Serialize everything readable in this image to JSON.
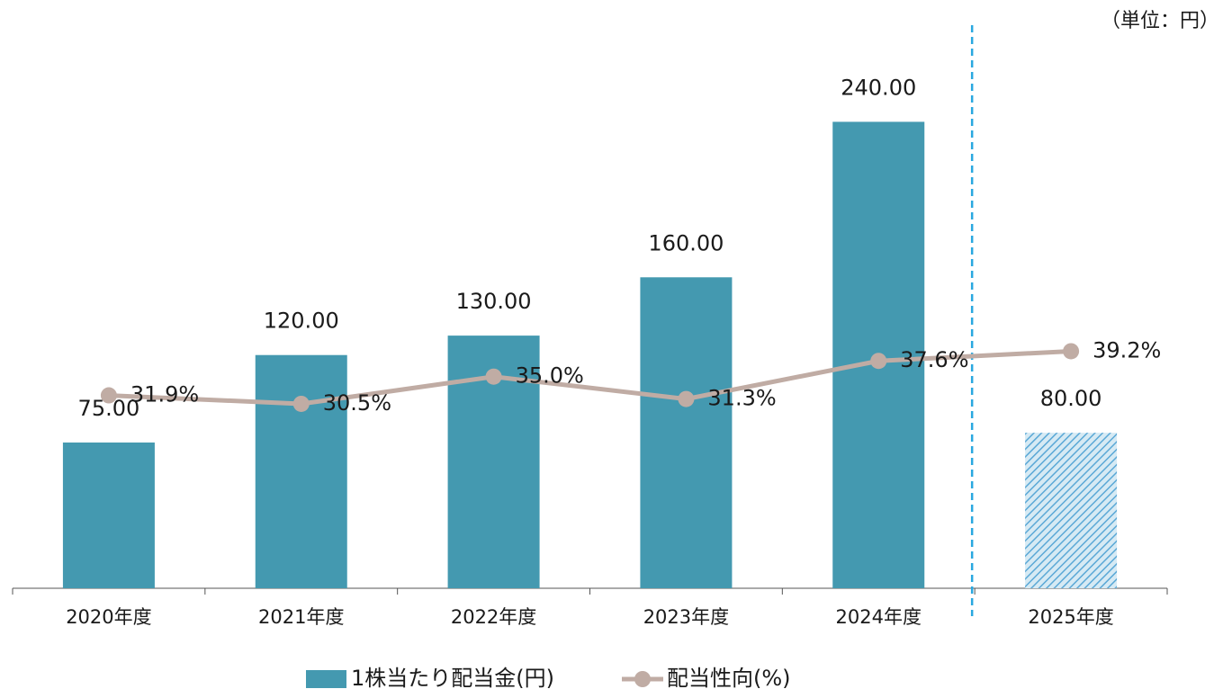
{
  "chart_data": {
    "type": "bar",
    "unit_label": "（単位：円）",
    "categories": [
      "2020年度",
      "2021年度",
      "2022年度",
      "2023年度",
      "2024年度",
      "2025年度"
    ],
    "series": [
      {
        "name": "1株当たり配当金(円)",
        "type": "bar",
        "color": "#4499b0",
        "values": [
          75,
          120,
          130,
          160,
          240,
          80
        ],
        "value_labels": [
          "75.00",
          "120.00",
          "130.00",
          "160.00",
          "240.00",
          "80.00"
        ],
        "hatch": [
          false,
          false,
          false,
          false,
          false,
          true
        ]
      },
      {
        "name": "配当性向(%)",
        "type": "line",
        "color": "#c0aca4",
        "axis": "y2",
        "values": [
          31.9,
          30.5,
          35.0,
          31.3,
          37.6,
          39.2
        ],
        "value_labels": [
          "31.9%",
          "30.5%",
          "35.0%",
          "31.3%",
          "37.6%",
          "39.2%"
        ]
      }
    ],
    "ylim": [
      0,
      280
    ],
    "y2lim": [
      0,
      90
    ],
    "legend": "bottom"
  }
}
